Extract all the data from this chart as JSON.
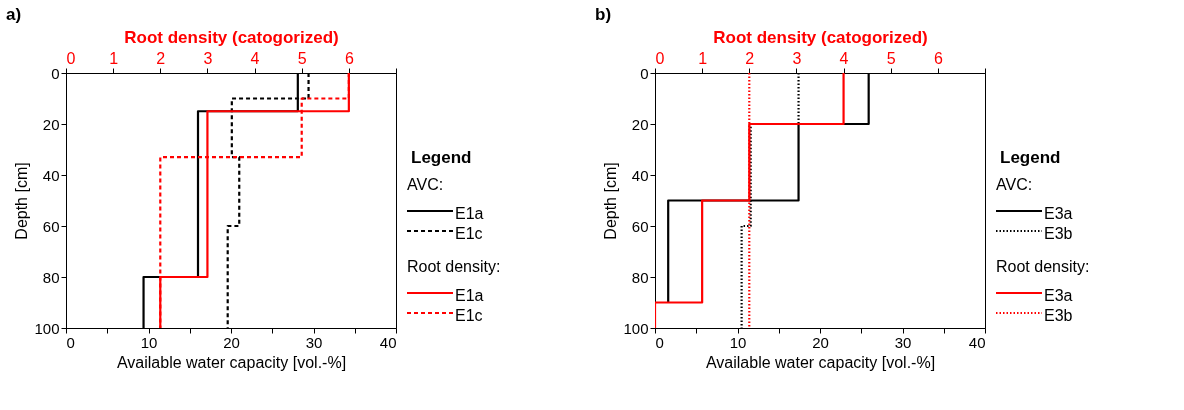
{
  "chart_data": [
    {
      "type": "line",
      "title": "a)",
      "xlabel": "Available water capacity [vol.-%]",
      "ylabel": "Depth [cm]",
      "x2label": "Root density (catogorized)",
      "legend_title": "Legend",
      "annotations": [
        "AVC:",
        "Root density:"
      ],
      "xlim": [
        0,
        40
      ],
      "xticks": [
        0,
        {
          "value": 5,
          "label": null
        },
        10,
        {
          "value": 15,
          "label": null
        },
        20,
        {
          "value": 25,
          "label": null
        },
        30,
        {
          "value": 35,
          "label": null
        },
        40
      ],
      "x2lim": [
        0,
        7
      ],
      "x2ticks": [
        0,
        1,
        2,
        3,
        4,
        5,
        6,
        {
          "value": 7,
          "label": null
        }
      ],
      "ylim": [
        100,
        0
      ],
      "yticks": [
        0,
        20,
        40,
        60,
        80,
        100
      ],
      "grid": false,
      "legend": "right",
      "series": [
        {
          "name": "E1a",
          "color": "#000000",
          "line_style": "solid",
          "x": [
            28.1,
            28.1,
            16.0,
            16.0,
            9.4,
            9.4
          ],
          "values": [
            0,
            15,
            15,
            80,
            80,
            100
          ]
        },
        {
          "name": "E1c",
          "color": "#000000",
          "line_style": "dashed",
          "x": [
            29.4,
            29.4,
            20.1,
            20.1,
            21.0,
            21.0,
            19.6,
            19.6
          ],
          "values": [
            0,
            10,
            10,
            33,
            33,
            60,
            60,
            100
          ]
        },
        {
          "name": "E1a",
          "color": "#ff0000",
          "line_style": "solid",
          "axis": "x2",
          "x": [
            6,
            6,
            3,
            3,
            2,
            2
          ],
          "values": [
            0,
            15,
            15,
            80,
            80,
            100
          ]
        },
        {
          "name": "E1c",
          "color": "#ff0000",
          "line_style": "dashed",
          "axis": "x2",
          "x": [
            6,
            6,
            5,
            5,
            2,
            2
          ],
          "values": [
            0,
            10,
            10,
            33,
            33,
            100
          ]
        }
      ]
    },
    {
      "type": "line",
      "title": "b)",
      "xlabel": "Available water capacity [vol.-%]",
      "ylabel": "Depth [cm]",
      "x2label": "Root density (catogorized)",
      "legend_title": "Legend",
      "annotations": [
        "AVC:",
        "Root density:"
      ],
      "xlim": [
        0,
        40
      ],
      "xticks": [
        0,
        {
          "value": 5,
          "label": null
        },
        10,
        {
          "value": 15,
          "label": null
        },
        20,
        {
          "value": 25,
          "label": null
        },
        30,
        {
          "value": 35,
          "label": null
        },
        40
      ],
      "x2lim": [
        0,
        7
      ],
      "x2ticks": [
        0,
        1,
        2,
        3,
        4,
        5,
        6,
        {
          "value": 7,
          "label": null
        }
      ],
      "ylim": [
        100,
        0
      ],
      "yticks": [
        0,
        20,
        40,
        60,
        80,
        100
      ],
      "grid": false,
      "legend": "right",
      "series": [
        {
          "name": "E3a",
          "color": "#000000",
          "line_style": "solid",
          "x": [
            25.9,
            25.9,
            17.4,
            17.4,
            1.6,
            1.6
          ],
          "values": [
            0,
            20,
            20,
            50,
            50,
            90
          ]
        },
        {
          "name": "E3b",
          "color": "#000000",
          "line_style": "dotted",
          "x": [
            17.4,
            17.4,
            11.6,
            11.6,
            10.5,
            10.5
          ],
          "values": [
            0,
            20,
            20,
            60,
            60,
            100
          ]
        },
        {
          "name": "E3a",
          "color": "#ff0000",
          "line_style": "solid",
          "axis": "x2",
          "x": [
            4,
            4,
            2,
            2,
            1,
            1,
            0,
            0
          ],
          "values": [
            0,
            20,
            20,
            50,
            50,
            90,
            90,
            100
          ]
        },
        {
          "name": "E3b",
          "color": "#ff0000",
          "line_style": "dotted",
          "axis": "x2",
          "x": [
            2,
            2
          ],
          "values": [
            0,
            100
          ]
        }
      ]
    }
  ]
}
